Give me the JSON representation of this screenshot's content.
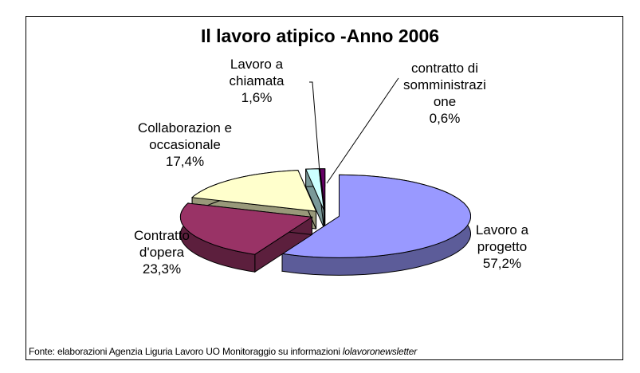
{
  "chart_data": {
    "type": "pie",
    "title": "Il lavoro atipico -Anno 2006",
    "categories": [
      "Lavoro a progetto",
      "Contratto d'opera",
      "Collaborazion e occasionale",
      "Lavoro a chiamata",
      "contratto di somministrazi one"
    ],
    "values": [
      57.2,
      23.3,
      17.4,
      1.6,
      0.6
    ],
    "value_labels": [
      "57,2%",
      "23,3%",
      "17,4%",
      "1,6%",
      "0,6%"
    ],
    "colors": [
      "#9999ff",
      "#993366",
      "#ffffcc",
      "#ccffff",
      "#660066"
    ],
    "source": "Fonte: elaborazioni Agenzia Liguria Lavoro UO Monitoraggio su informazioni ",
    "source_italic": "lolavoronewsletter"
  }
}
